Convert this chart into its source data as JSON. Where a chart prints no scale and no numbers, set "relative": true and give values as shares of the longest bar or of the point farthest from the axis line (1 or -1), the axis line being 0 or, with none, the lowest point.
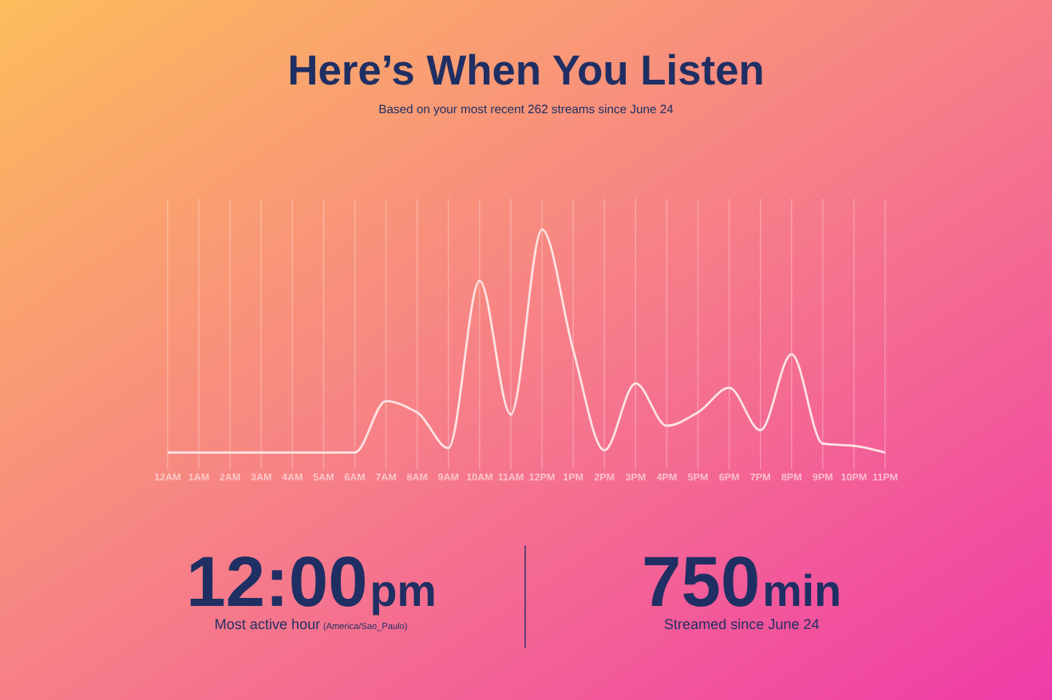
{
  "chart_data": {
    "type": "line",
    "title": "Here’s When You Listen",
    "subtitle": "Based on your most recent 262 streams since June 24",
    "categories": [
      "12AM",
      "1AM",
      "2AM",
      "3AM",
      "4AM",
      "5AM",
      "6AM",
      "7AM",
      "8AM",
      "9AM",
      "10AM",
      "11AM",
      "12PM",
      "1PM",
      "2PM",
      "3PM",
      "4PM",
      "5PM",
      "6PM",
      "7PM",
      "8PM",
      "9PM",
      "10PM",
      "11PM"
    ],
    "series": [
      {
        "color": "#fde4e4",
        "values": [
          0,
          0,
          0,
          0,
          0,
          0,
          0,
          0.23,
          0.18,
          0.02,
          0.77,
          0.17,
          1,
          0.46,
          0.01,
          0.31,
          0.12,
          0.18,
          0.29,
          0.1,
          0.44,
          0.04,
          0.03,
          0
        ]
      }
    ],
    "relative": true,
    "grid": "x",
    "annotations": [
      "12:00",
      "pm",
      "Most active hour",
      "(America/Sao_Paulo)",
      "750",
      "min",
      "Streamed since June 24"
    ]
  }
}
